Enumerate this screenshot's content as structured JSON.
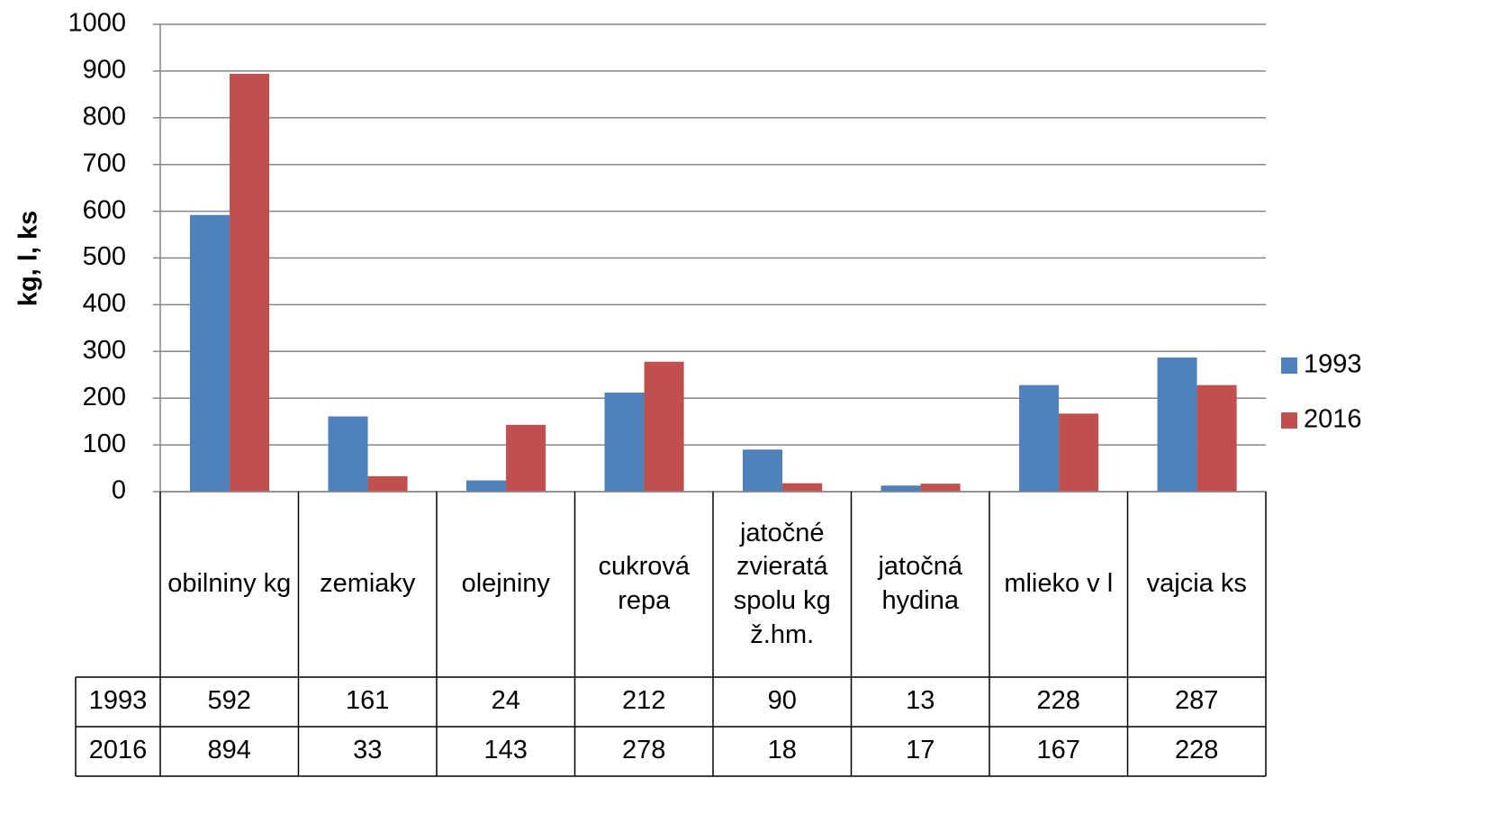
{
  "chart_data": {
    "type": "bar",
    "y_label": "kg, l, ks",
    "categories": [
      "obilniny kg",
      "zemiaky",
      "olejniny",
      "cukrová repa",
      "jatočné zvieratá spolu kg ž.hm.",
      "jatočná hydina",
      "mlieko v l",
      "vajcia ks"
    ],
    "series": [
      {
        "name": "1993",
        "color": "#4f81bd",
        "values": [
          592,
          161,
          24,
          212,
          90,
          13,
          228,
          287
        ]
      },
      {
        "name": "2016",
        "color": "#c0504d",
        "values": [
          894,
          33,
          143,
          278,
          18,
          17,
          167,
          228
        ]
      }
    ],
    "ylim": [
      0,
      1000
    ],
    "yticks": [
      0,
      100,
      200,
      300,
      400,
      500,
      600,
      700,
      800,
      900,
      1000
    ],
    "grid": true,
    "legend": "right",
    "data_table": true
  }
}
